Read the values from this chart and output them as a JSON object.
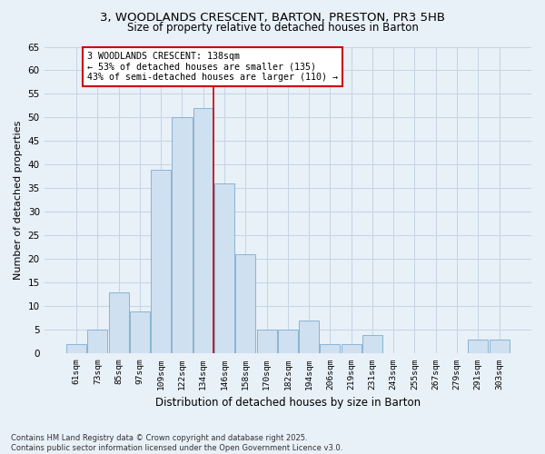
{
  "title_line1": "3, WOODLANDS CRESCENT, BARTON, PRESTON, PR3 5HB",
  "title_line2": "Size of property relative to detached houses in Barton",
  "xlabel": "Distribution of detached houses by size in Barton",
  "ylabel": "Number of detached properties",
  "categories": [
    "61sqm",
    "73sqm",
    "85sqm",
    "97sqm",
    "109sqm",
    "122sqm",
    "134sqm",
    "146sqm",
    "158sqm",
    "170sqm",
    "182sqm",
    "194sqm",
    "206sqm",
    "219sqm",
    "231sqm",
    "243sqm",
    "255sqm",
    "267sqm",
    "279sqm",
    "291sqm",
    "303sqm"
  ],
  "values": [
    2,
    5,
    13,
    9,
    39,
    50,
    52,
    36,
    21,
    5,
    5,
    7,
    2,
    2,
    4,
    0,
    0,
    0,
    0,
    3,
    3
  ],
  "bar_color": "#cfe0f0",
  "bar_edge_color": "#8ab4d4",
  "grid_color": "#c4d4e4",
  "bg_color": "#e8f0f8",
  "vline_color": "#cc0000",
  "vline_x_index": 6.5,
  "annotation_text": "3 WOODLANDS CRESCENT: 138sqm\n← 53% of detached houses are smaller (135)\n43% of semi-detached houses are larger (110) →",
  "annotation_box_facecolor": "#ffffff",
  "annotation_box_edgecolor": "#cc0000",
  "ylim": [
    0,
    65
  ],
  "yticks": [
    0,
    5,
    10,
    15,
    20,
    25,
    30,
    35,
    40,
    45,
    50,
    55,
    60,
    65
  ],
  "footer_line1": "Contains HM Land Registry data © Crown copyright and database right 2025.",
  "footer_line2": "Contains public sector information licensed under the Open Government Licence v3.0."
}
